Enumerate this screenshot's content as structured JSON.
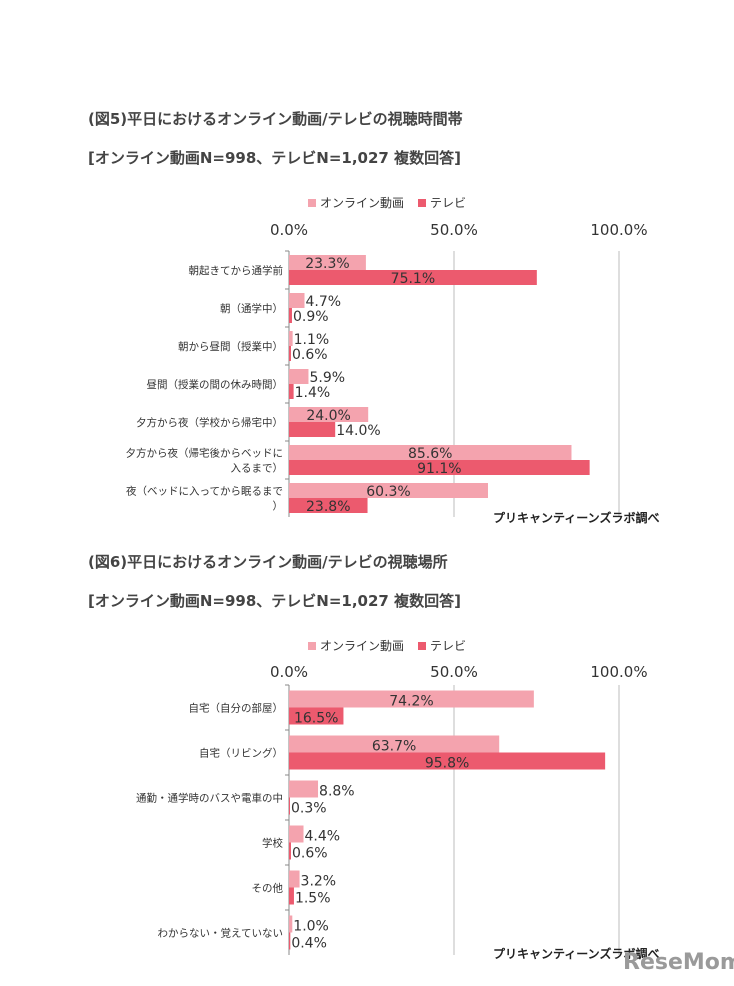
{
  "figure1": {
    "title": "(図5)平日におけるオンライン動画/テレビの視聴時間帯",
    "subtitle": "[オンライン動画N=998、テレビN=1,027 複数回答]",
    "source": "プリキャンティーンズラボ調べ"
  },
  "figure2": {
    "title": "(図6)平日におけるオンライン動画/テレビの視聴場所",
    "subtitle": "[オンライン動画N=998、テレビN=1,027 複数回答]",
    "source": "プリキャンティーンズラボ調べ"
  },
  "watermark": "ReseMom",
  "chart_data": [
    {
      "type": "bar",
      "orientation": "horizontal",
      "categories": [
        "朝起きてから通学前",
        "朝（通学中）",
        "朝から昼間（授業中）",
        "昼間（授業の間の休み時間）",
        "夕方から夜（学校から帰宅中）",
        "夕方から夜（帰宅後からベッドに入るまで）",
        "夜（ベッドに入ってから眠るまで）"
      ],
      "series": [
        {
          "name": "オンライン動画",
          "color": "#f4a3ae",
          "values": [
            23.3,
            4.7,
            1.1,
            5.9,
            24.0,
            85.6,
            60.3
          ],
          "labels": [
            "23.3%",
            "4.7%",
            "1.1%",
            "5.9%",
            "24.0%",
            "85.6%",
            "60.3%"
          ]
        },
        {
          "name": "テレビ",
          "color": "#ec5a6e",
          "values": [
            75.1,
            0.9,
            0.6,
            1.4,
            14.0,
            91.1,
            23.8
          ],
          "labels": [
            "75.1%",
            "0.9%",
            "0.6%",
            "1.4%",
            "14.0%",
            "91.1%",
            "23.8%"
          ]
        }
      ],
      "xlim": [
        0,
        100
      ],
      "ticks": [
        "0.0%",
        "50.0%",
        "100.0%"
      ],
      "legend_position": "top",
      "grid": true
    },
    {
      "type": "bar",
      "orientation": "horizontal",
      "categories": [
        "自宅（自分の部屋）",
        "自宅（リビング）",
        "通勤・通学時のバスや電車の中",
        "学校",
        "その他",
        "わからない・覚えていない"
      ],
      "series": [
        {
          "name": "オンライン動画",
          "color": "#f4a3ae",
          "values": [
            74.2,
            63.7,
            8.8,
            4.4,
            3.2,
            1.0
          ],
          "labels": [
            "74.2%",
            "63.7%",
            "8.8%",
            "4.4%",
            "3.2%",
            "1.0%"
          ]
        },
        {
          "name": "テレビ",
          "color": "#ec5a6e",
          "values": [
            16.5,
            95.8,
            0.3,
            0.6,
            1.5,
            0.4
          ],
          "labels": [
            "16.5%",
            "95.8%",
            "0.3%",
            "0.6%",
            "1.5%",
            "0.4%"
          ]
        }
      ],
      "xlim": [
        0,
        100
      ],
      "ticks": [
        "0.0%",
        "50.0%",
        "100.0%"
      ],
      "legend_position": "top",
      "grid": true
    }
  ]
}
